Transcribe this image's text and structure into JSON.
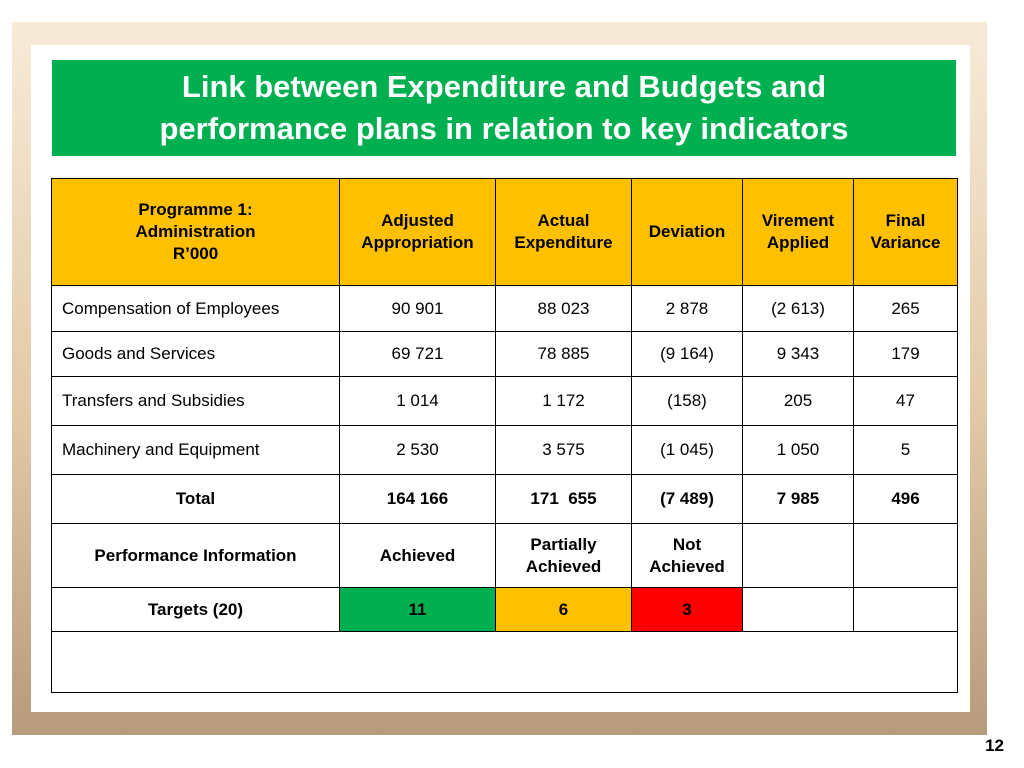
{
  "title": {
    "line1": "Link between Expenditure and Budgets and",
    "line2": "performance plans in relation to key indicators"
  },
  "table": {
    "header": {
      "programme_line1": "Programme 1:",
      "programme_line2": "Administration",
      "programme_line3": "R’000",
      "adjusted_line1": "Adjusted",
      "adjusted_line2": "Appropriation",
      "actual_line1": "Actual",
      "actual_line2": "Expenditure",
      "deviation": "Deviation",
      "virement_line1": "Virement",
      "virement_line2": "Applied",
      "final_line1": "Final",
      "final_line2": "Variance"
    },
    "rows": [
      {
        "item": "Compensation of Employees",
        "adjusted": "90 901",
        "actual": "88 023",
        "deviation": "2 878",
        "virement": "(2 613)",
        "final": "265"
      },
      {
        "item": "Goods and Services",
        "adjusted": "69 721",
        "actual": "78 885",
        "deviation": "(9 164)",
        "virement": "9 343",
        "final": "179"
      },
      {
        "item": "Transfers and Subsidies",
        "adjusted": "1 014",
        "actual": "1 172",
        "deviation": "(158)",
        "virement": "205",
        "final": "47"
      },
      {
        "item": "Machinery and Equipment",
        "adjusted": "2 530",
        "actual": "3 575",
        "deviation": "(1 045)",
        "virement": "1 050",
        "final": "5"
      }
    ],
    "total": {
      "item": "Total",
      "adjusted": "164 166",
      "actual": "171  655",
      "deviation": "(7 489)",
      "virement": "7 985",
      "final": "496"
    },
    "performance": {
      "label": "Performance Information",
      "achieved": "Achieved",
      "partially_line1": "Partially",
      "partially_line2": "Achieved",
      "not_line1": "Not",
      "not_line2": "Achieved"
    },
    "targets": {
      "label": "Targets (20)",
      "achieved": "11",
      "partially": "6",
      "not_achieved": "3"
    }
  },
  "colors": {
    "title_bg": "#00b050",
    "header_bg": "#ffc000",
    "achieved": "#00b050",
    "partial": "#ffc000",
    "not_achieved": "#ff0000"
  },
  "page_number": "12"
}
